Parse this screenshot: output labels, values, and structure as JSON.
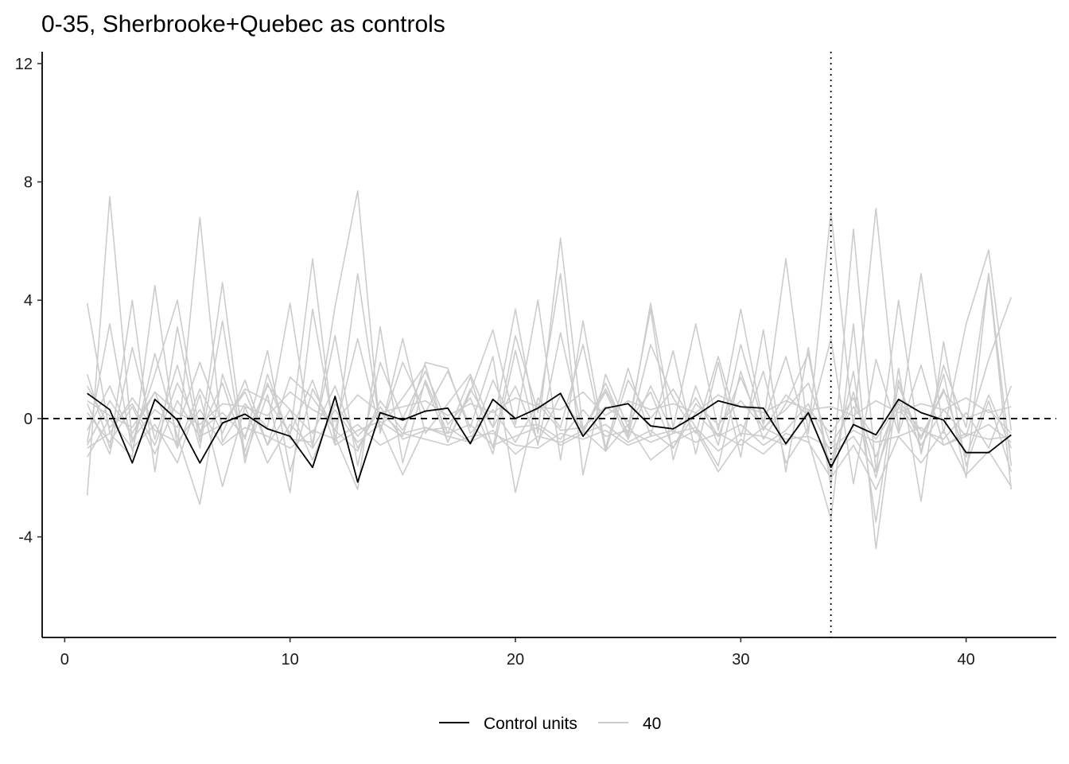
{
  "chart_data": {
    "type": "line",
    "title": "0-35, Sherbrooke+Quebec as controls",
    "xlabel": "",
    "ylabel": "",
    "xlim": [
      -1,
      44
    ],
    "ylim": [
      -7.4,
      12.4
    ],
    "x_ticks": [
      0,
      10,
      20,
      30,
      40
    ],
    "y_ticks": [
      -4,
      0,
      4,
      8,
      12
    ],
    "x_tick_labels": [
      "0",
      "10",
      "20",
      "30",
      "40"
    ],
    "y_tick_labels": [
      "-4",
      "0",
      "4",
      "8",
      "12"
    ],
    "reference_lines": {
      "horizontal_dashed_y": 0,
      "vertical_dotted_x": 34
    },
    "grid": false,
    "legend_position": "bottom",
    "colors": {
      "control": "#000000",
      "placebo": "#cccccc"
    },
    "x": [
      1,
      2,
      3,
      4,
      5,
      6,
      7,
      8,
      9,
      10,
      11,
      12,
      13,
      14,
      15,
      16,
      17,
      18,
      19,
      20,
      21,
      22,
      23,
      24,
      25,
      26,
      27,
      28,
      29,
      30,
      31,
      32,
      33,
      34,
      35,
      36,
      37,
      38,
      39,
      40,
      41,
      42
    ],
    "series": [
      {
        "name": "Control units",
        "color": "#000000",
        "values": [
          0.85,
          0.3,
          -1.5,
          0.65,
          -0.05,
          -1.5,
          -0.15,
          0.15,
          -0.35,
          -0.6,
          -1.65,
          0.75,
          -2.15,
          0.2,
          -0.05,
          0.25,
          0.35,
          -0.85,
          0.65,
          0.0,
          0.35,
          0.85,
          -0.6,
          0.35,
          0.5,
          -0.25,
          -0.35,
          0.1,
          0.6,
          0.4,
          0.35,
          -0.85,
          0.2,
          -1.65,
          -0.2,
          -0.55,
          0.65,
          0.2,
          -0.05,
          -1.15,
          -1.15,
          -0.55
        ]
      },
      {
        "name": "40",
        "color": "#cccccc",
        "values": [
          3.9,
          -0.5,
          -1.3,
          4.5,
          -1.0,
          6.8,
          -0.8,
          0.5,
          -0.3,
          3.9,
          -1.0,
          3.8,
          7.7,
          -0.5,
          2.7,
          -0.5,
          0.5,
          1.5,
          -0.3,
          3.7,
          -0.5,
          6.1,
          -0.4,
          1.0,
          -0.5,
          3.9,
          -0.3,
          3.2,
          -0.4,
          3.7,
          -0.2,
          5.4,
          -0.5,
          7.0,
          -0.3,
          7.1,
          -0.4,
          4.9,
          -0.5,
          3.2,
          5.7,
          -0.4
        ]
      },
      {
        "values": [
          -2.6,
          7.5,
          -0.8,
          1.5,
          4.0,
          -0.5,
          1.2,
          -1.1,
          1.2,
          -0.6,
          5.4,
          -0.9,
          4.9,
          -0.3,
          0.7,
          1.8,
          -0.8,
          0.9,
          3.0,
          -0.2,
          4.0,
          -1.4,
          3.3,
          -1.0,
          1.7,
          -0.6,
          2.3,
          -1.2,
          1.9,
          -1.3,
          3.0,
          -1.8,
          2.4,
          -2.3,
          6.4,
          -1.8,
          4.0,
          -1.2,
          1.8,
          -0.3,
          4.9,
          -1.6
        ]
      },
      {
        "values": [
          1.5,
          -1.0,
          4.0,
          -1.8,
          3.1,
          -0.8,
          4.6,
          -1.3,
          0.8,
          -2.5,
          3.7,
          -0.6,
          -2.4,
          3.1,
          -1.5,
          1.3,
          -0.5,
          1.4,
          -1.0,
          2.8,
          0.2,
          4.9,
          -1.9,
          1.5,
          -0.3,
          3.7,
          -1.4,
          1.1,
          -0.9,
          2.5,
          -0.2,
          2.1,
          -0.7,
          -3.4,
          3.2,
          -4.4,
          1.3,
          -1.1,
          1.5,
          -2.0,
          4.9,
          -2.4
        ]
      },
      {
        "values": [
          -0.8,
          3.2,
          -1.1,
          2.2,
          -0.6,
          -2.9,
          1.5,
          -0.7,
          2.3,
          -1.8,
          1.0,
          -0.4,
          2.7,
          -0.4,
          1.9,
          0.2,
          1.6,
          -0.3,
          2.1,
          -2.5,
          0.7,
          -0.3,
          2.5,
          -1.1,
          1.3,
          0.0,
          1.0,
          -0.3,
          -1.6,
          1.6,
          -0.7,
          0.5,
          2.2,
          -1.9,
          1.6,
          -3.5,
          1.7,
          -2.8,
          2.6,
          -1.6,
          0.6,
          -1.8
        ]
      },
      {
        "values": [
          0.5,
          -1.2,
          2.4,
          -0.7,
          1.8,
          -1.0,
          3.3,
          -1.5,
          1.5,
          -0.7,
          -0.8,
          2.8,
          -1.6,
          1.9,
          0.0,
          1.6,
          -0.2,
          0.7,
          -1.2,
          2.3,
          -0.9,
          2.9,
          -0.5,
          1.2,
          -0.6,
          2.5,
          0.7,
          -0.5,
          2.1,
          -0.6,
          1.6,
          -1.5,
          -0.3,
          2.7,
          -2.2,
          2.0,
          -0.5,
          1.8,
          -0.9,
          -0.6,
          2.0,
          4.1
        ]
      },
      {
        "values": [
          -0.9,
          0.6,
          -0.5,
          0.9,
          -1.0,
          1.0,
          -0.5,
          1.3,
          -0.9,
          1.4,
          0.7,
          -0.4,
          -1.1,
          0.6,
          -0.4,
          1.2,
          -0.8,
          1.0,
          -0.3,
          1.1,
          -0.8,
          0.8,
          -0.4,
          0.9,
          -0.7,
          1.1,
          -0.5,
          0.7,
          -0.6,
          1.4,
          -0.4,
          0.8,
          0.1,
          -1.5,
          0.9,
          -2.0,
          1.1,
          -0.7,
          1.0,
          -1.3,
          0.8,
          -1.0
        ]
      },
      {
        "values": [
          -1.3,
          0.0,
          -1.0,
          -0.2,
          -1.5,
          0.8,
          -2.3,
          0.4,
          -1.5,
          -0.2,
          -1.0,
          0.3,
          -0.8,
          -0.2,
          -1.9,
          -0.3,
          -0.6,
          -0.8,
          -0.4,
          -1.2,
          -0.6,
          -0.8,
          -0.4,
          -1.1,
          -0.2,
          -1.4,
          -0.8,
          -0.4,
          -1.8,
          -0.7,
          -1.2,
          -0.5,
          -0.8,
          -2.0,
          -0.9,
          -2.4,
          -0.6,
          -1.5,
          -0.4,
          -1.9,
          -1.1,
          -2.3
        ]
      },
      {
        "values": [
          0.2,
          -0.8,
          0.4,
          -1.2,
          0.6,
          -0.6,
          -0.2,
          0.9,
          -0.9,
          0.3,
          -1.4,
          0.5,
          -0.6,
          0.2,
          -0.5,
          -0.3,
          -0.5,
          -0.2,
          -0.9,
          -0.6,
          -0.3,
          -0.9,
          -0.5,
          -0.2,
          -0.8,
          -0.4,
          -1.0,
          0.2,
          -0.6,
          -0.2,
          -0.9,
          -0.4,
          0.5,
          -1.2,
          -0.6,
          -1.8,
          0.4,
          -0.9,
          0.3,
          -0.6,
          -0.2,
          -0.8
        ]
      },
      {
        "values": [
          -0.4,
          1.1,
          -0.7,
          0.3,
          -0.3,
          1.9,
          -0.2,
          1.0,
          0.6,
          -0.5,
          1.3,
          -0.9,
          -0.4,
          -0.1,
          -0.6,
          1.9,
          1.7,
          -0.5,
          0.3,
          -0.8,
          0.5,
          -0.4,
          -0.3,
          0.4,
          -0.1,
          0.9,
          -1.0,
          0.5,
          -0.2,
          0.6,
          -0.3,
          0.3,
          1.2,
          -0.9,
          0.4,
          -0.7,
          0.5,
          -0.6,
          0.9,
          0.0,
          0.3,
          -0.5
        ]
      },
      {
        "values": [
          1.1,
          -0.3,
          0.5,
          -0.9,
          1.2,
          -0.4,
          0.2,
          -0.6,
          1.1,
          0.3,
          -0.5,
          1.1,
          -1.0,
          0.4,
          -0.7,
          -0.4,
          -0.3,
          -0.8,
          1.3,
          -0.3,
          -0.2,
          -0.7,
          0.3,
          -0.6,
          -0.4,
          -0.8,
          -0.5,
          -0.3,
          -1.1,
          -0.5,
          -0.6,
          -0.9,
          0.3,
          -0.5,
          0.7,
          -1.3,
          0.6,
          -0.4,
          -0.7,
          0.2,
          -1.0,
          1.1
        ]
      },
      {
        "values": [
          -1.0,
          -0.5,
          0.7,
          -0.4,
          -0.8,
          0.3,
          -0.9,
          -0.3,
          -0.6,
          -1.0,
          -0.4,
          -0.7,
          -0.2,
          -0.9,
          -0.5,
          -0.7,
          -0.9,
          -0.6,
          -0.5,
          -0.9,
          -1.0,
          -0.5,
          -0.7,
          -0.4,
          -0.9,
          -0.6,
          -0.4,
          -0.8,
          -0.5,
          -0.9,
          -0.3,
          -0.7,
          -0.6,
          -1.0,
          -0.4,
          -0.8,
          -0.6,
          -0.3,
          -0.9,
          -0.5,
          -0.7,
          -0.6
        ]
      },
      {
        "values": [
          0.6,
          0.1,
          -0.3,
          0.9,
          0.2,
          -0.2,
          0.5,
          0.4,
          0.1,
          0.9,
          0.3,
          -0.1,
          0.8,
          0.2,
          0.4,
          0.6,
          0.1,
          0.5,
          0.2,
          0.7,
          0.4,
          0.3,
          0.9,
          0.1,
          0.6,
          0.3,
          0.5,
          0.2,
          0.8,
          0.4,
          0.2,
          0.6,
          0.3,
          0.4,
          0.1,
          0.6,
          0.2,
          0.5,
          0.3,
          0.7,
          0.2,
          0.4
        ]
      }
    ]
  }
}
